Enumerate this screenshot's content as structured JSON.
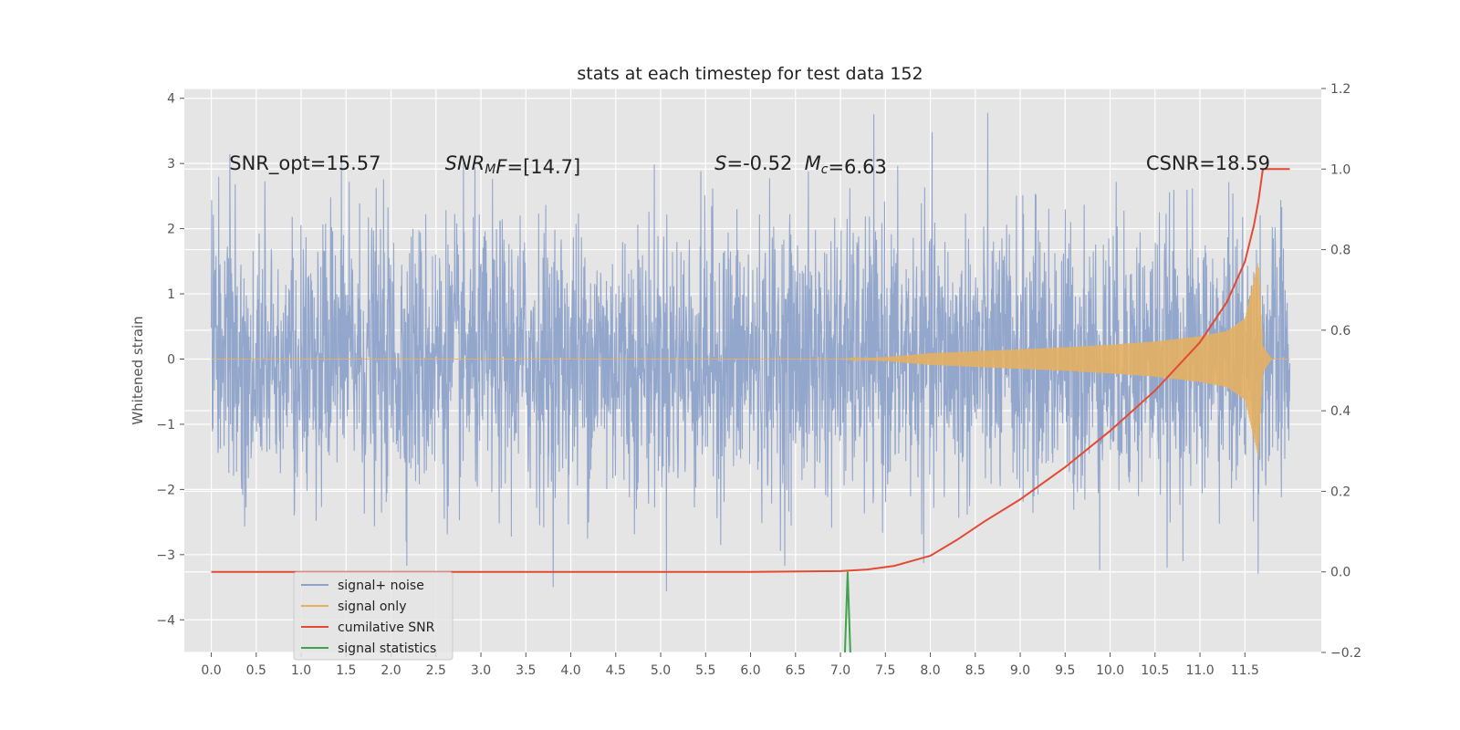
{
  "chart_data": {
    "type": "line",
    "title": "stats at each timestep for test data 152",
    "ylabel": "Whitened strain",
    "y2label": "",
    "xlim": [
      -0.3,
      12.35
    ],
    "ylim": [
      -4.5,
      4.15
    ],
    "y2lim": [
      -0.2,
      1.2
    ],
    "x_ticks": [
      0.0,
      0.5,
      1.0,
      1.5,
      2.0,
      2.5,
      3.0,
      3.5,
      4.0,
      4.5,
      5.0,
      5.5,
      6.0,
      6.5,
      7.0,
      7.5,
      8.0,
      8.5,
      9.0,
      9.5,
      10.0,
      10.5,
      11.0,
      11.5
    ],
    "x_tick_labels": [
      "0.0",
      "0.5",
      "1.0",
      "1.5",
      "2.0",
      "2.5",
      "3.0",
      "3.5",
      "4.0",
      "4.5",
      "5.0",
      "5.5",
      "6.0",
      "6.5",
      "7.0",
      "7.5",
      "8.0",
      "8.5",
      "9.0",
      "9.5",
      "10.0",
      "10.5",
      "11.0",
      "11.5"
    ],
    "y_ticks": [
      4,
      3,
      2,
      1,
      0,
      -1,
      -2,
      -3,
      -4
    ],
    "y_tick_labels": [
      "4",
      "3",
      "2",
      "1",
      "0",
      "−1",
      "−2",
      "−3",
      "−4"
    ],
    "y2_ticks": [
      1.2,
      1.0,
      0.8,
      0.6,
      0.4,
      0.2,
      0.0,
      -0.2
    ],
    "y2_tick_labels": [
      "1.2",
      "1.0",
      "0.8",
      "0.6",
      "0.4",
      "0.2",
      "0.0",
      "−0.2"
    ],
    "grid": true,
    "legend_position": "lower-left",
    "series": [
      {
        "name": "signal+ noise",
        "color": "#8ea2c9",
        "axis": "left",
        "style": "noise",
        "x_range": [
          0.0,
          12.0
        ],
        "amplitude_typical": 1.7,
        "amplitude_peak": 3.8
      },
      {
        "name": "signal only",
        "color": "#e4b062",
        "axis": "left",
        "style": "chirp",
        "envelope_x": [
          0.0,
          7.0,
          7.5,
          8.0,
          8.5,
          9.0,
          9.5,
          10.0,
          10.5,
          11.0,
          11.3,
          11.5,
          11.65,
          11.7,
          11.8,
          12.0
        ],
        "envelope_y": [
          0.0,
          0.0,
          0.03,
          0.09,
          0.12,
          0.15,
          0.18,
          0.22,
          0.27,
          0.35,
          0.43,
          0.62,
          1.5,
          0.2,
          0.0,
          0.0
        ]
      },
      {
        "name": "cumilative SNR",
        "color": "#e24a33",
        "axis": "right",
        "x": [
          0.0,
          6.0,
          7.0,
          7.3,
          7.6,
          8.0,
          8.3,
          8.6,
          9.0,
          9.5,
          10.0,
          10.5,
          11.0,
          11.3,
          11.5,
          11.6,
          11.65,
          11.7,
          11.8,
          12.0
        ],
        "y": [
          0.0,
          0.0,
          0.002,
          0.006,
          0.015,
          0.04,
          0.08,
          0.125,
          0.18,
          0.26,
          0.35,
          0.45,
          0.57,
          0.67,
          0.77,
          0.86,
          0.92,
          1.0,
          1.0,
          1.0
        ]
      },
      {
        "name": "signal statistics",
        "color": "#348abd",
        "axis": "right",
        "style": "impulse",
        "x": [
          7.05,
          7.08,
          7.11
        ],
        "y": [
          -0.2,
          0.0,
          -0.2
        ]
      }
    ],
    "annotations": [
      {
        "text": "SNR_opt=15.57",
        "x": 0.2,
        "y": 3.0
      },
      {
        "text_parts": [
          {
            "t": "SNR",
            "italic": true
          },
          {
            "t": "M",
            "italic": true,
            "sub": true
          },
          {
            "t": "F",
            "italic": true
          },
          {
            "t": "=[14.7]",
            "italic": false
          }
        ],
        "x": 2.6,
        "y": 3.0
      },
      {
        "text_parts": [
          {
            "t": "S",
            "italic": true
          },
          {
            "t": "=-0.52",
            "italic": false
          }
        ],
        "x": 5.6,
        "y": 3.0
      },
      {
        "text_parts": [
          {
            "t": "M",
            "italic": true
          },
          {
            "t": "c",
            "italic": true,
            "sub": true
          },
          {
            "t": "=6.63",
            "italic": false
          }
        ],
        "x": 6.6,
        "y": 3.0
      },
      {
        "text": "CSNR=18.59",
        "x": 10.4,
        "y": 3.0
      }
    ],
    "colors": {
      "background": "#e5e5e5",
      "grid": "#ffffff",
      "legend_bg": "#e5e5e5",
      "legend_border": "#cccccc"
    }
  }
}
